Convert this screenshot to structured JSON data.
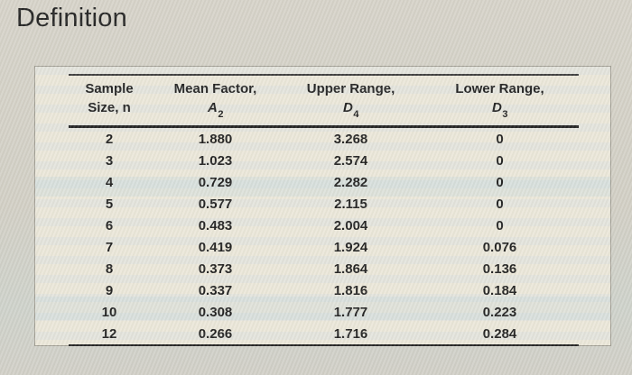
{
  "page": {
    "title": "Definition"
  },
  "table": {
    "headers": [
      {
        "line1": "Sample",
        "line2": "Size, n"
      },
      {
        "line1": "Mean Factor,",
        "symbol": "A",
        "subscript": "2"
      },
      {
        "line1": "Upper Range,",
        "symbol": "D",
        "subscript": "4"
      },
      {
        "line1": "Lower Range,",
        "symbol": "D",
        "subscript": "3"
      }
    ],
    "rows": [
      [
        "2",
        "1.880",
        "3.268",
        "0"
      ],
      [
        "3",
        "1.023",
        "2.574",
        "0"
      ],
      [
        "4",
        "0.729",
        "2.282",
        "0"
      ],
      [
        "5",
        "0.577",
        "2.115",
        "0"
      ],
      [
        "6",
        "0.483",
        "2.004",
        "0"
      ],
      [
        "7",
        "0.419",
        "1.924",
        "0.076"
      ],
      [
        "8",
        "0.373",
        "1.864",
        "0.136"
      ],
      [
        "9",
        "0.337",
        "1.816",
        "0.184"
      ],
      [
        "10",
        "0.308",
        "1.777",
        "0.223"
      ],
      [
        "12",
        "0.266",
        "1.716",
        "0.284"
      ]
    ]
  },
  "colors": {
    "background": "#d6d3c9",
    "card_background": "#e9e6db",
    "card_border": "#a09d93",
    "text": "#1d1d1d",
    "rule": "#202020"
  }
}
